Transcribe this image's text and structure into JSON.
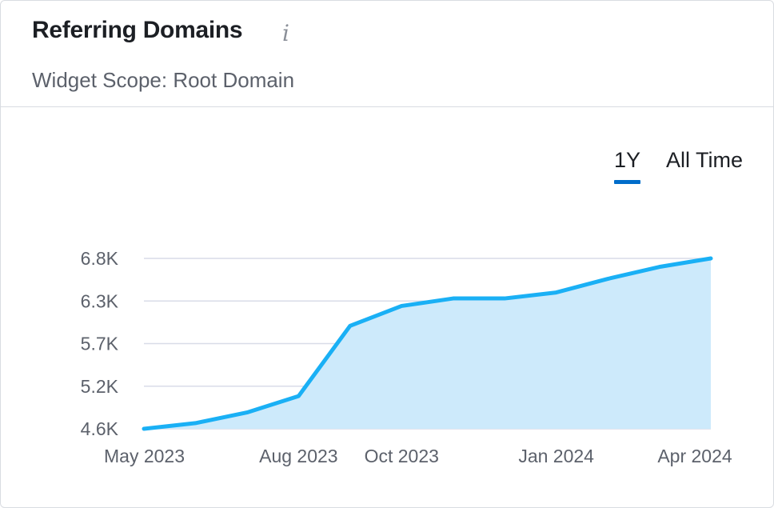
{
  "widget": {
    "title": "Referring Domains",
    "info_icon": "i",
    "subtitle": "Widget Scope: Root Domain",
    "tabs": [
      {
        "label": "1Y",
        "active": true
      },
      {
        "label": "All Time",
        "active": false
      }
    ]
  },
  "colors": {
    "line": "#1ab0f5",
    "area": "#cdeafb",
    "grid": "#d9dce8",
    "tab_underline": "#006dca"
  },
  "chart_data": {
    "type": "area",
    "title": "",
    "xlabel": "",
    "ylabel": "",
    "x": [
      "2023-05",
      "2023-06",
      "2023-07",
      "2023-08",
      "2023-09",
      "2023-10",
      "2023-11",
      "2023-12",
      "2024-01",
      "2024-02",
      "2024-03",
      "2024-04"
    ],
    "x_tick_labels": [
      "May 2023",
      "Aug 2023",
      "Oct 2023",
      "Jan 2024",
      "Apr 2024"
    ],
    "x_tick_positions": [
      "2023-05",
      "2023-08",
      "2023-10",
      "2024-01",
      "2024-04"
    ],
    "y_tick_labels": [
      "4.6K",
      "5.2K",
      "5.7K",
      "6.3K",
      "6.8K"
    ],
    "y_tick_values": [
      4600,
      5200,
      5700,
      6300,
      6800
    ],
    "ylim": [
      4600,
      6800
    ],
    "grid": true,
    "series": [
      {
        "values": [
          4600,
          4680,
          4830,
          5060,
          5950,
          6230,
          6330,
          6330,
          6400,
          6560,
          6700,
          6800
        ]
      }
    ]
  }
}
